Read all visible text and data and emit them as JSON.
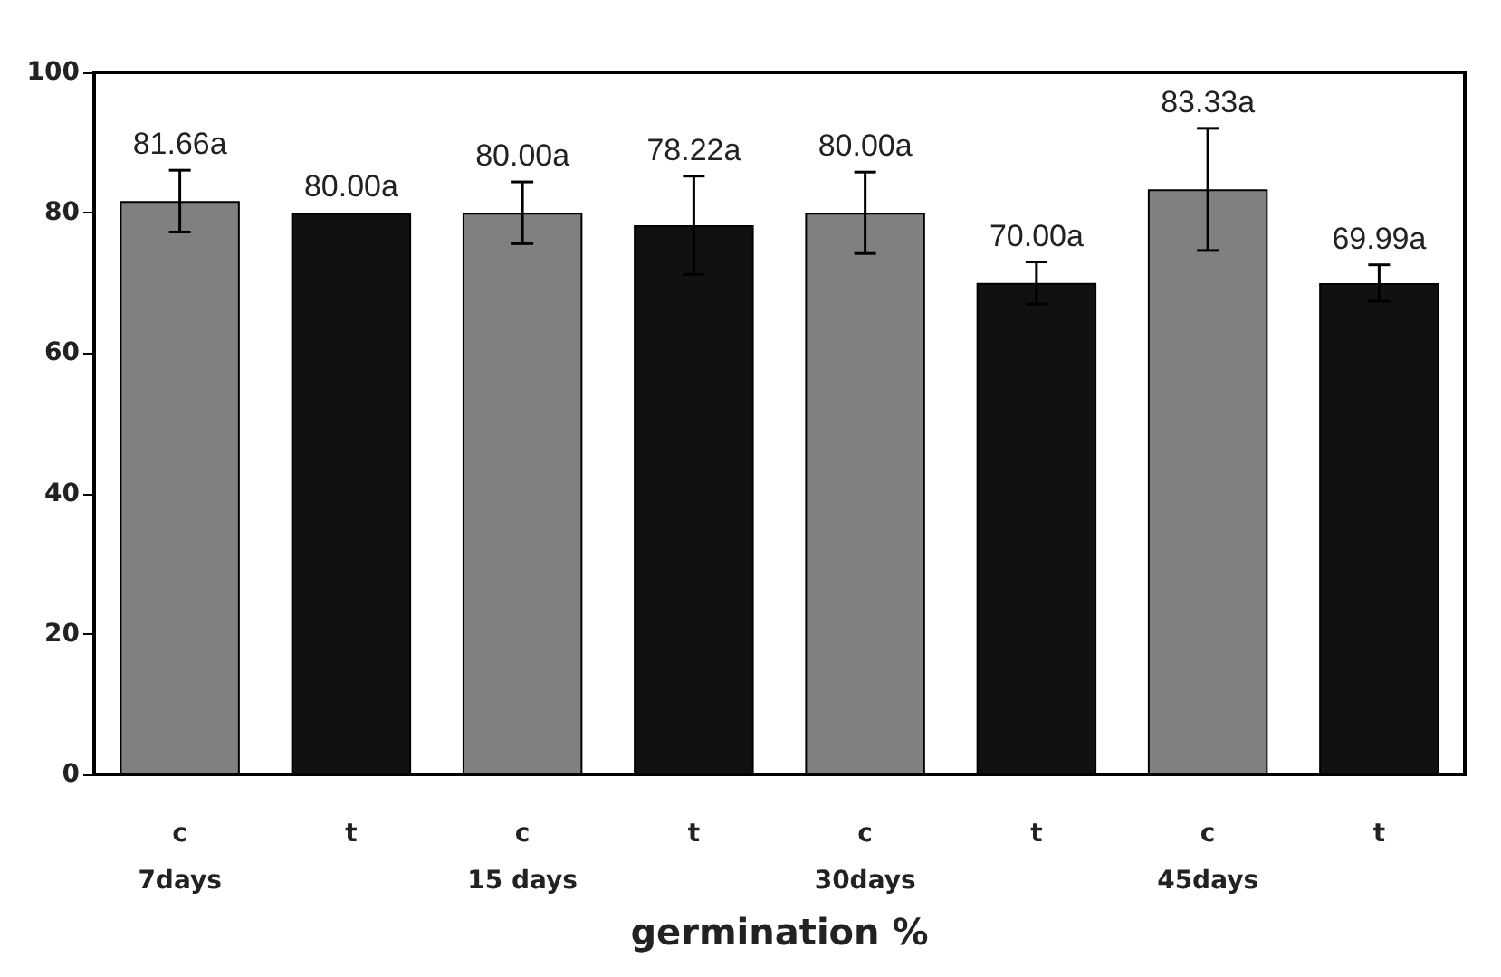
{
  "chart_data": {
    "type": "bar",
    "xlabel": "germination %",
    "categories": [
      "c\n7days",
      "t",
      "c\n15 days",
      "t",
      "c\n30days",
      "t",
      "c\n45days",
      "t"
    ],
    "values": [
      81.66,
      80.0,
      80.0,
      78.22,
      80.0,
      70.0,
      83.33,
      69.99
    ],
    "colors": [
      "#808080",
      "#111111",
      "#808080",
      "#111111",
      "#808080",
      "#111111",
      "#808080",
      "#111111"
    ],
    "errors": [
      4.4,
      null,
      4.4,
      7,
      5.8,
      3,
      8.7,
      2.6
    ],
    "value_labels": [
      "81.66a",
      "80.00a",
      "80.00a",
      "78.22a",
      "80.00a",
      "70.00a",
      "83.33a",
      "69.99a"
    ],
    "ylim": [
      0,
      100
    ],
    "yticks": [
      0,
      20,
      40,
      60,
      80,
      100
    ]
  }
}
